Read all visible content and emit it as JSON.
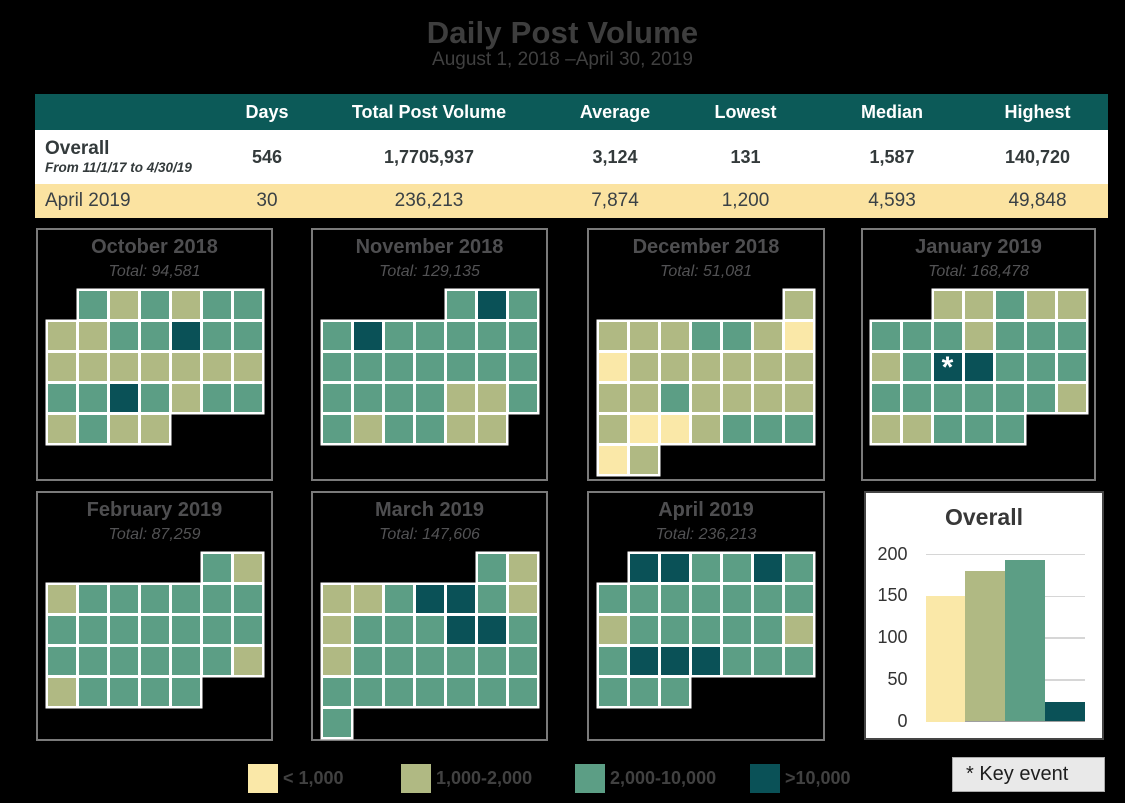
{
  "title": "Daily Post Volume",
  "subtitle": "August 1, 2018 –April 30, 2019",
  "summary_table": {
    "columns": [
      "",
      "Days",
      "Total Post Volume",
      "Average",
      "Lowest",
      "Median",
      "Highest"
    ],
    "rows": [
      {
        "label": "Overall",
        "sublabel": "From 11/1/17 to 4/30/19",
        "values": [
          "546",
          "1,7705,937",
          "3,124",
          "131",
          "1,587",
          "140,720"
        ]
      },
      {
        "label": "April 2019",
        "sublabel": "",
        "values": [
          "30",
          "236,213",
          "7,874",
          "1,200",
          "4,593",
          "49,848"
        ]
      }
    ]
  },
  "palette": {
    "Y": "#fae8a8",
    "O": "#b0b983",
    "G": "#5c9e85",
    "D": "#0a5157",
    "header_teal": "#0c5a58",
    "april_row": "#fbe3a1"
  },
  "months": [
    {
      "name": "October 2018",
      "total_label": "Total: 94,581",
      "start_col": 2,
      "weeks": [
        "GOGOGG",
        "OOGGDGG",
        "OOOOOOO",
        "GGDGOGG",
        "OGOO"
      ],
      "star": null
    },
    {
      "name": "November 2018",
      "total_label": "Total: 129,135",
      "start_col": 5,
      "weeks": [
        "GDG",
        "GDGGGGG",
        "GGGGGGG",
        "GGGGOOG",
        "GOGGOO"
      ],
      "star": null
    },
    {
      "name": "December 2018",
      "total_label": "Total: 51,081",
      "start_col": 7,
      "weeks": [
        "O",
        "OOOGGOY",
        "YOOOOOO",
        "OOGOOOO",
        "OYYOGGG",
        "YO"
      ],
      "star": null
    },
    {
      "name": "January 2019",
      "total_label": "Total: 168,478",
      "start_col": 3,
      "weeks": [
        "OOGOO",
        "GGGOGGG",
        "OGDDGGG",
        "GGGGGGO",
        "OOGGG"
      ],
      "star": [
        2,
        2
      ]
    },
    {
      "name": "February 2019",
      "total_label": "Total: 87,259",
      "start_col": 6,
      "weeks": [
        "GO",
        "OGGGGGG",
        "GGGGGGG",
        "GGGGGGO",
        "OGGGG"
      ],
      "star": null
    },
    {
      "name": "March 2019",
      "total_label": "Total: 147,606",
      "start_col": 6,
      "weeks": [
        "GO",
        "OOGDDGO",
        "OGGGDDG",
        "OGGGGGG",
        "GGGGGGG",
        "G"
      ],
      "star": null
    },
    {
      "name": "April 2019",
      "total_label": "Total: 236,213",
      "start_col": 2,
      "weeks": [
        "DDGGDG",
        "GGGGGGG",
        "OGGGGGO",
        "GDDDGGG",
        "GGG"
      ],
      "star": null
    }
  ],
  "star_symbol": "*",
  "chart_data": {
    "type": "bar",
    "title": "Overall",
    "categories": [
      "< 1,000",
      "1,000-2,000",
      "2,000-10,000",
      ">10,000"
    ],
    "values": [
      150,
      180,
      193,
      23
    ],
    "colors": [
      "Y",
      "O",
      "G",
      "D"
    ],
    "yticks": [
      0,
      50,
      100,
      150,
      200
    ],
    "ylim": [
      0,
      200
    ],
    "grid": true,
    "legend_position": "none"
  },
  "legend": {
    "items": [
      {
        "label": "< 1,000",
        "color": "Y"
      },
      {
        "label": "1,000-2,000",
        "color": "O"
      },
      {
        "label": "2,000-10,000",
        "color": "G"
      },
      {
        "label": ">10,000",
        "color": "D"
      }
    ],
    "key_event_label": "* Key event"
  }
}
